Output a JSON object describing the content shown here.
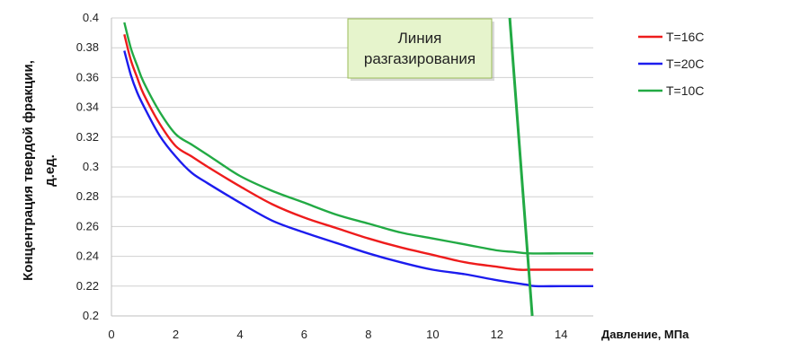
{
  "chart_data": {
    "type": "line",
    "xlabel": "Давление, МПа",
    "ylabel": [
      "Концентрация твердой фракции,",
      "д.ед."
    ],
    "xlim": [
      0,
      15
    ],
    "ylim": [
      0.2,
      0.4
    ],
    "x_ticks": [
      "0",
      "2",
      "4",
      "6",
      "8",
      "10",
      "12",
      "14"
    ],
    "y_ticks": [
      "0.2",
      "0.22",
      "0.24",
      "0.26",
      "0.28",
      "0.3",
      "0.32",
      "0.34",
      "0.36",
      "0.38",
      "0.4"
    ],
    "grid": "horizontal",
    "legend_position": "right",
    "series": [
      {
        "name": "T=16C",
        "color": "#ee1c1c",
        "x": [
          0.4,
          0.6,
          0.8,
          1.0,
          1.5,
          2,
          2.5,
          3,
          4,
          5,
          6,
          7,
          8,
          9,
          10,
          11,
          12,
          12.7,
          13,
          14,
          15
        ],
        "y": [
          0.389,
          0.372,
          0.36,
          0.349,
          0.329,
          0.314,
          0.307,
          0.3,
          0.287,
          0.275,
          0.266,
          0.259,
          0.252,
          0.246,
          0.241,
          0.236,
          0.233,
          0.231,
          0.231,
          0.231,
          0.231
        ]
      },
      {
        "name": "T=20C",
        "color": "#1c1cee",
        "x": [
          0.4,
          0.6,
          0.8,
          1.0,
          1.5,
          2,
          2.5,
          3,
          4,
          5,
          6,
          7,
          8,
          9,
          10,
          11,
          12,
          12.9,
          13.2,
          14,
          15
        ],
        "y": [
          0.378,
          0.362,
          0.35,
          0.341,
          0.321,
          0.307,
          0.296,
          0.289,
          0.276,
          0.264,
          0.256,
          0.249,
          0.242,
          0.236,
          0.231,
          0.228,
          0.224,
          0.221,
          0.22,
          0.22,
          0.22
        ]
      },
      {
        "name": "T=10C",
        "color": "#22aa44",
        "x": [
          0.4,
          0.6,
          0.8,
          1.0,
          1.5,
          2,
          2.5,
          3,
          4,
          5,
          6,
          7,
          8,
          9,
          10,
          11,
          12,
          12.5,
          13,
          14,
          15
        ],
        "y": [
          0.397,
          0.38,
          0.368,
          0.357,
          0.337,
          0.322,
          0.315,
          0.308,
          0.294,
          0.284,
          0.276,
          0.268,
          0.262,
          0.256,
          0.252,
          0.248,
          0.244,
          0.243,
          0.242,
          0.242,
          0.242
        ]
      }
    ],
    "degassing_line": {
      "color": "#22aa44",
      "points": [
        [
          12.4,
          0.4
        ],
        [
          13.1,
          0.2
        ]
      ]
    },
    "annotation": {
      "lines": [
        "Линия",
        "разгазирования"
      ],
      "fill": "#e6f4cc",
      "border": "#9bbb59"
    }
  }
}
